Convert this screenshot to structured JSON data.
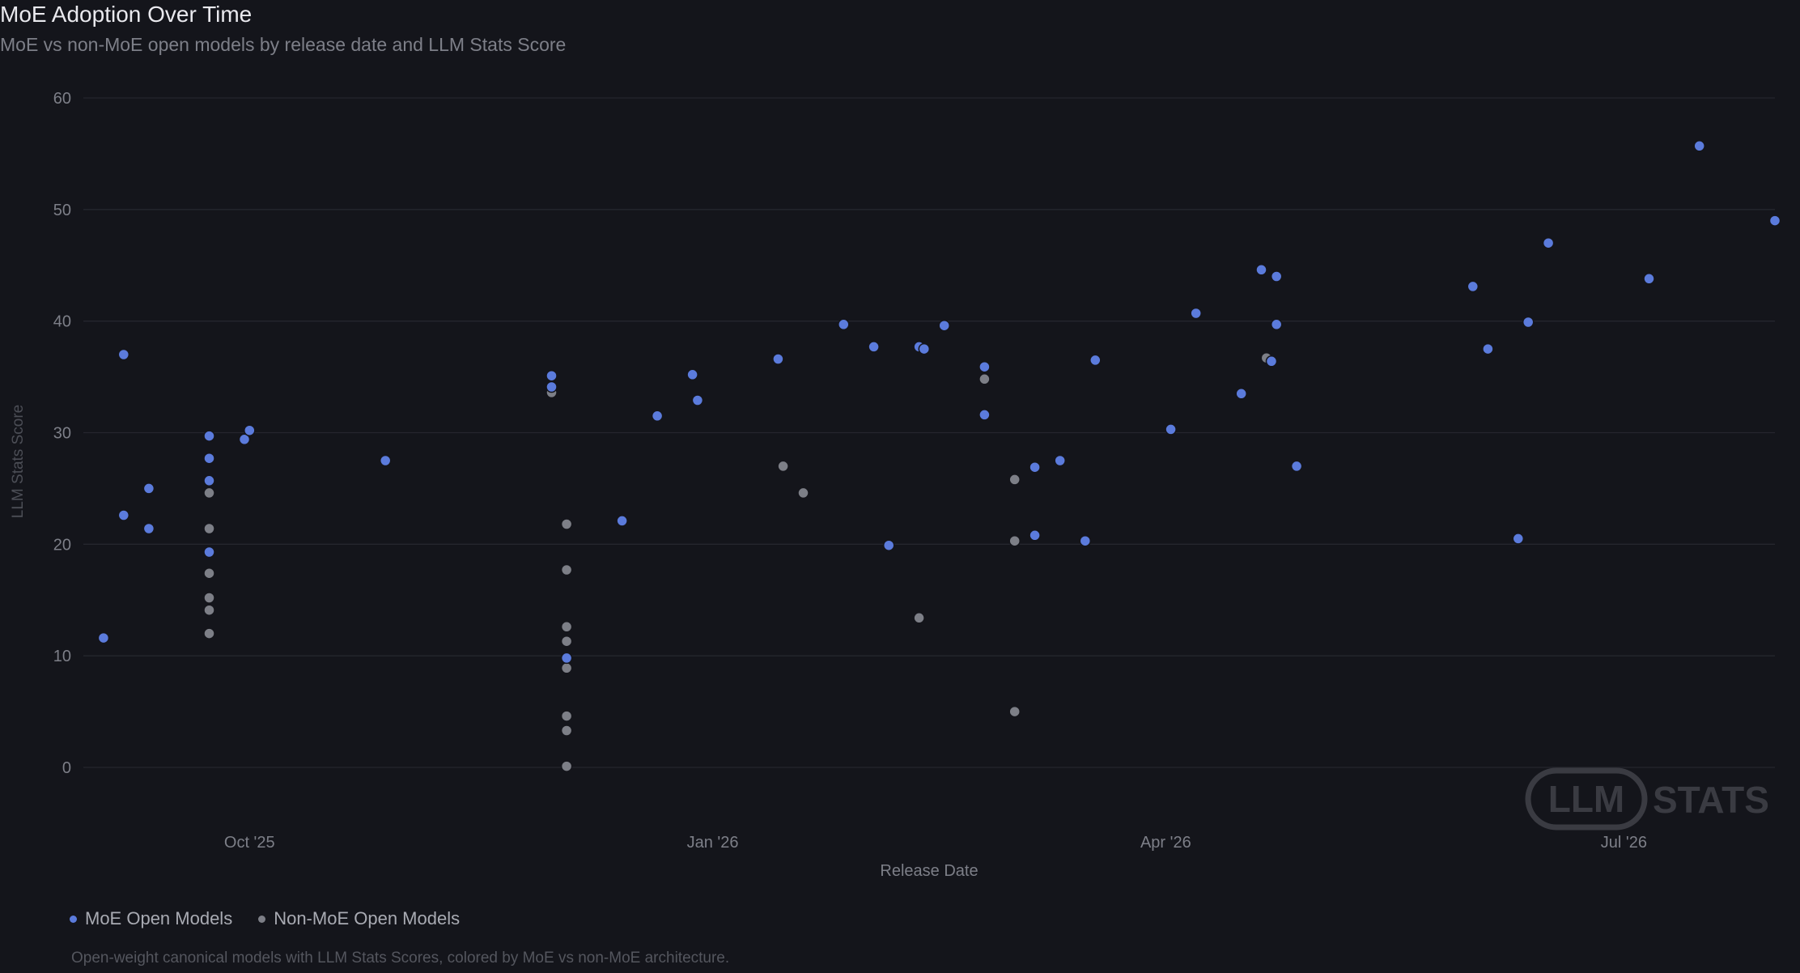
{
  "colors": {
    "background": "#14151b",
    "grid": "#25262e",
    "tick_text": "#7d7f88",
    "moe": "#5b7bdc",
    "moe_highlight": "#6f96ff",
    "non_moe": "#7d7f87",
    "watermark": "#3a3b42"
  },
  "chart_data": {
    "type": "scatter",
    "title": "MoE Adoption Over Time",
    "subtitle": "MoE vs non-MoE open models by release date and LLM Stats Score",
    "xlabel": "Release Date",
    "ylabel": "LLM Stats Score",
    "xlim": [
      "2025-08-29",
      "2026-07-31"
    ],
    "ylim": [
      -5,
      62
    ],
    "yticks": [
      0,
      10,
      20,
      30,
      40,
      50,
      60
    ],
    "xticks": [
      {
        "date": "2025-10-01",
        "label": "Oct '25"
      },
      {
        "date": "2026-01-01",
        "label": "Jan '26"
      },
      {
        "date": "2026-04-01",
        "label": "Apr '26"
      },
      {
        "date": "2026-07-01",
        "label": "Jul '26"
      }
    ],
    "grid": true,
    "legend_position": "bottom-left",
    "series": [
      {
        "name": "MoE Open Models",
        "points": [
          {
            "x": "2025-09-02",
            "y": 11.6
          },
          {
            "x": "2025-09-06",
            "y": 37.0
          },
          {
            "x": "2025-09-06",
            "y": 22.6
          },
          {
            "x": "2025-09-11",
            "y": 25.0
          },
          {
            "x": "2025-09-11",
            "y": 21.4
          },
          {
            "x": "2025-09-23",
            "y": 29.7
          },
          {
            "x": "2025-09-23",
            "y": 27.7
          },
          {
            "x": "2025-09-23",
            "y": 25.7
          },
          {
            "x": "2025-09-23",
            "y": 19.3
          },
          {
            "x": "2025-09-30",
            "y": 29.4
          },
          {
            "x": "2025-10-01",
            "y": 30.2
          },
          {
            "x": "2025-10-28",
            "y": 27.5
          },
          {
            "x": "2025-11-30",
            "y": 35.1
          },
          {
            "x": "2025-11-30",
            "y": 34.1
          },
          {
            "x": "2025-12-03",
            "y": 9.8
          },
          {
            "x": "2025-12-14",
            "y": 22.1
          },
          {
            "x": "2025-12-21",
            "y": 31.5
          },
          {
            "x": "2025-12-28",
            "y": 35.2
          },
          {
            "x": "2025-12-29",
            "y": 32.9
          },
          {
            "x": "2026-01-14",
            "y": 36.6
          },
          {
            "x": "2026-01-27",
            "y": 39.7
          },
          {
            "x": "2026-02-02",
            "y": 37.7
          },
          {
            "x": "2026-02-05",
            "y": 19.9
          },
          {
            "x": "2026-02-11",
            "y": 37.7
          },
          {
            "x": "2026-02-12",
            "y": 37.5
          },
          {
            "x": "2026-02-16",
            "y": 39.6
          },
          {
            "x": "2026-02-24",
            "y": 35.9
          },
          {
            "x": "2026-02-24",
            "y": 31.6
          },
          {
            "x": "2026-03-06",
            "y": 26.9
          },
          {
            "x": "2026-03-06",
            "y": 20.8
          },
          {
            "x": "2026-03-11",
            "y": 27.5
          },
          {
            "x": "2026-03-16",
            "y": 20.3
          },
          {
            "x": "2026-03-18",
            "y": 36.5
          },
          {
            "x": "2026-04-02",
            "y": 30.3
          },
          {
            "x": "2026-04-07",
            "y": 40.7
          },
          {
            "x": "2026-04-16",
            "y": 33.5
          },
          {
            "x": "2026-04-20",
            "y": 44.6
          },
          {
            "x": "2026-04-23",
            "y": 44.0
          },
          {
            "x": "2026-04-23",
            "y": 39.7
          },
          {
            "x": "2026-04-22",
            "y": 36.4
          },
          {
            "x": "2026-04-27",
            "y": 27.0
          },
          {
            "x": "2026-06-01",
            "y": 43.1
          },
          {
            "x": "2026-06-04",
            "y": 37.5
          },
          {
            "x": "2026-06-10",
            "y": 20.5
          },
          {
            "x": "2026-06-12",
            "y": 39.9
          },
          {
            "x": "2026-06-16",
            "y": 47.0
          },
          {
            "x": "2026-07-06",
            "y": 43.8
          },
          {
            "x": "2026-07-16",
            "y": 55.7
          },
          {
            "x": "2026-07-31",
            "y": 49.0
          }
        ]
      },
      {
        "name": "Non-MoE Open Models",
        "points": [
          {
            "x": "2025-09-23",
            "y": 24.6
          },
          {
            "x": "2025-09-23",
            "y": 21.4
          },
          {
            "x": "2025-09-23",
            "y": 17.4
          },
          {
            "x": "2025-09-23",
            "y": 15.2
          },
          {
            "x": "2025-09-23",
            "y": 14.1
          },
          {
            "x": "2025-09-23",
            "y": 12.0
          },
          {
            "x": "2025-11-30",
            "y": 33.6
          },
          {
            "x": "2025-12-03",
            "y": 21.8
          },
          {
            "x": "2025-12-03",
            "y": 17.7
          },
          {
            "x": "2025-12-03",
            "y": 12.6
          },
          {
            "x": "2025-12-03",
            "y": 11.3
          },
          {
            "x": "2025-12-03",
            "y": 8.9
          },
          {
            "x": "2025-12-03",
            "y": 4.6
          },
          {
            "x": "2025-12-03",
            "y": 3.3
          },
          {
            "x": "2025-12-03",
            "y": 0.1
          },
          {
            "x": "2026-01-15",
            "y": 27.0
          },
          {
            "x": "2026-01-19",
            "y": 24.6
          },
          {
            "x": "2026-02-11",
            "y": 13.4
          },
          {
            "x": "2026-02-24",
            "y": 34.8
          },
          {
            "x": "2026-03-02",
            "y": 25.8
          },
          {
            "x": "2026-03-02",
            "y": 20.3
          },
          {
            "x": "2026-03-02",
            "y": 5.0
          },
          {
            "x": "2026-04-21",
            "y": 36.7
          }
        ]
      }
    ]
  },
  "legend": {
    "moe_label": "MoE Open Models",
    "non_moe_label": "Non-MoE Open Models"
  },
  "footnote": "Open-weight canonical models with LLM Stats Scores, colored by MoE vs non-MoE architecture.",
  "watermark": {
    "logo_text": "LLM",
    "stats_text": "STATS"
  }
}
